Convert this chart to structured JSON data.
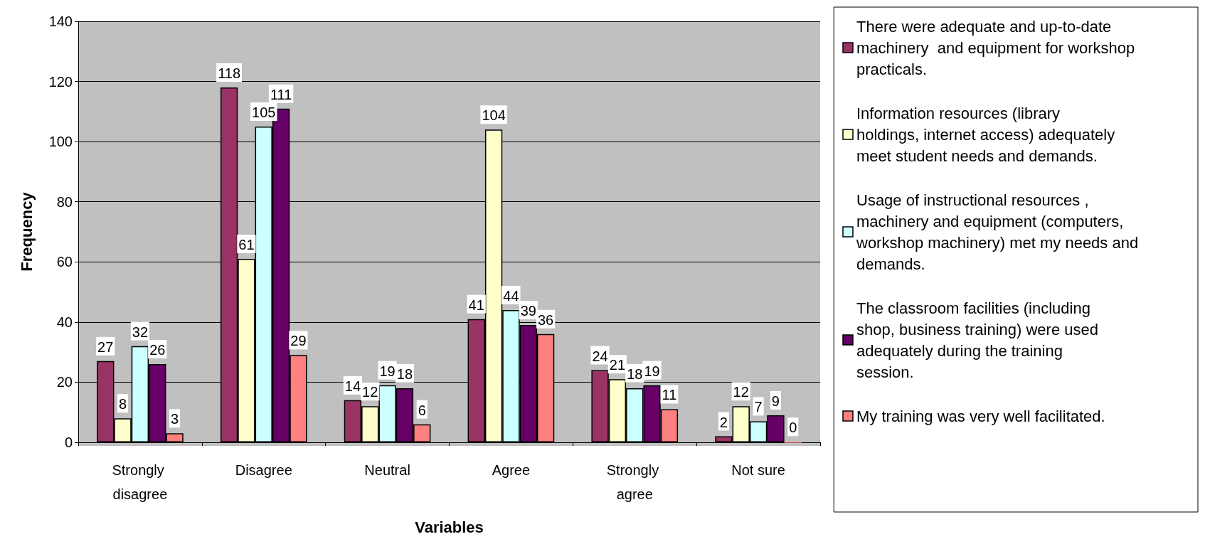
{
  "chart_data": {
    "type": "bar",
    "xlabel": "Variables",
    "ylabel": "Frequency",
    "categories": [
      "Strongly disagree",
      "Disagree",
      "Neutral",
      "Agree",
      "Strongly agree",
      "Not sure"
    ],
    "series": [
      {
        "name": "There were adequate and up-to-date machinery  and equipment for workshop practicals.",
        "color": "#993366",
        "values": [
          27,
          118,
          14,
          41,
          24,
          2
        ]
      },
      {
        "name": "Information resources (library holdings, internet access) adequately meet student needs and demands.",
        "color": "#ffffcc",
        "values": [
          8,
          61,
          12,
          104,
          21,
          12
        ]
      },
      {
        "name": "Usage of instructional resources ,machinery and equipment (computers, workshop machinery) met my needs and demands.",
        "color": "#ccffff",
        "values": [
          32,
          105,
          19,
          44,
          18,
          7
        ]
      },
      {
        "name": "The classroom facilities (including shop, business training) were used adequately during the training session.",
        "color": "#660066",
        "values": [
          26,
          111,
          18,
          39,
          19,
          9
        ]
      },
      {
        "name": "My training was very well facilitated.",
        "color": "#ff8080",
        "values": [
          3,
          29,
          6,
          36,
          11,
          0
        ]
      }
    ],
    "ylim": [
      0,
      140
    ],
    "yticks": [
      0,
      20,
      40,
      60,
      80,
      100,
      120,
      140
    ],
    "grid": "y",
    "legend": "right",
    "data_labels": true
  }
}
